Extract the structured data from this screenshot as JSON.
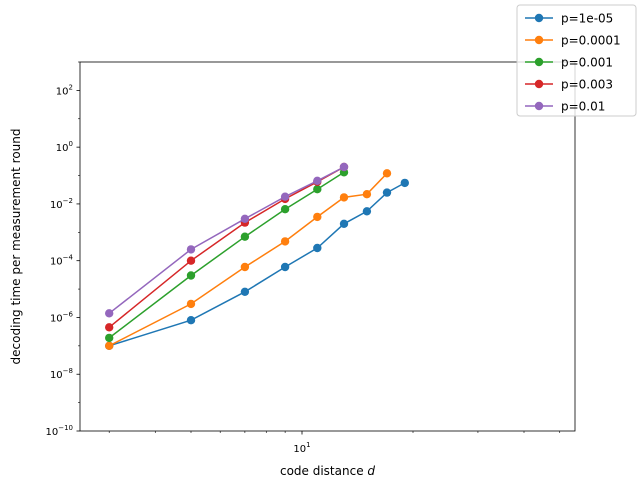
{
  "chart_data": {
    "type": "line",
    "xlabel": "code distance d",
    "xlabel_main": "code distance ",
    "xlabel_italic": "d",
    "ylabel": "decoding time per measurement round",
    "x_scale": "log",
    "y_scale": "log",
    "xlim": [
      2.5,
      55
    ],
    "ylim": [
      1e-10,
      1000
    ],
    "x_major_ticks": [
      10
    ],
    "y_major_ticks": [
      1e-10,
      1e-08,
      1e-06,
      0.0001,
      0.01,
      1,
      100
    ],
    "y_tick_labels": [
      {
        "base": "10",
        "exp": "−10"
      },
      {
        "base": "10",
        "exp": "−8"
      },
      {
        "base": "10",
        "exp": "−6"
      },
      {
        "base": "10",
        "exp": "−4"
      },
      {
        "base": "10",
        "exp": "−2"
      },
      {
        "base": "10",
        "exp": "0"
      },
      {
        "base": "10",
        "exp": "2"
      }
    ],
    "x_tick_labels": [
      {
        "base": "10",
        "exp": "1"
      }
    ],
    "grid": false,
    "legend_position": "top-right (outside plot)",
    "series": [
      {
        "name": "p=1e-05",
        "color": "#1f77b4",
        "points": [
          [
            3,
            1e-07
          ],
          [
            5,
            8e-07
          ],
          [
            7,
            8e-06
          ],
          [
            9,
            6e-05
          ],
          [
            11,
            0.00028
          ],
          [
            13,
            0.002
          ],
          [
            15,
            0.0055
          ],
          [
            17,
            0.025
          ],
          [
            19,
            0.055
          ]
        ]
      },
      {
        "name": "p=0.0001",
        "color": "#ff7f0e",
        "points": [
          [
            3,
            1e-07
          ],
          [
            5,
            3e-06
          ],
          [
            7,
            6e-05
          ],
          [
            9,
            0.00048
          ],
          [
            11,
            0.0035
          ],
          [
            13,
            0.017
          ],
          [
            15,
            0.022
          ],
          [
            17,
            0.12
          ]
        ]
      },
      {
        "name": "p=0.001",
        "color": "#2ca02c",
        "points": [
          [
            3,
            1.9e-07
          ],
          [
            5,
            3e-05
          ],
          [
            7,
            0.0007
          ],
          [
            9,
            0.0065
          ],
          [
            11,
            0.033
          ],
          [
            13,
            0.13
          ]
        ]
      },
      {
        "name": "p=0.003",
        "color": "#d62728",
        "points": [
          [
            3,
            4.5e-07
          ],
          [
            5,
            0.0001
          ],
          [
            7,
            0.0022
          ],
          [
            9,
            0.015
          ],
          [
            11,
            0.06
          ],
          [
            13,
            0.2
          ]
        ]
      },
      {
        "name": "p=0.01",
        "color": "#9467bd",
        "points": [
          [
            3,
            1.4e-06
          ],
          [
            5,
            0.00025
          ],
          [
            7,
            0.003
          ],
          [
            9,
            0.018
          ],
          [
            11,
            0.065
          ],
          [
            13,
            0.2
          ]
        ]
      }
    ]
  }
}
